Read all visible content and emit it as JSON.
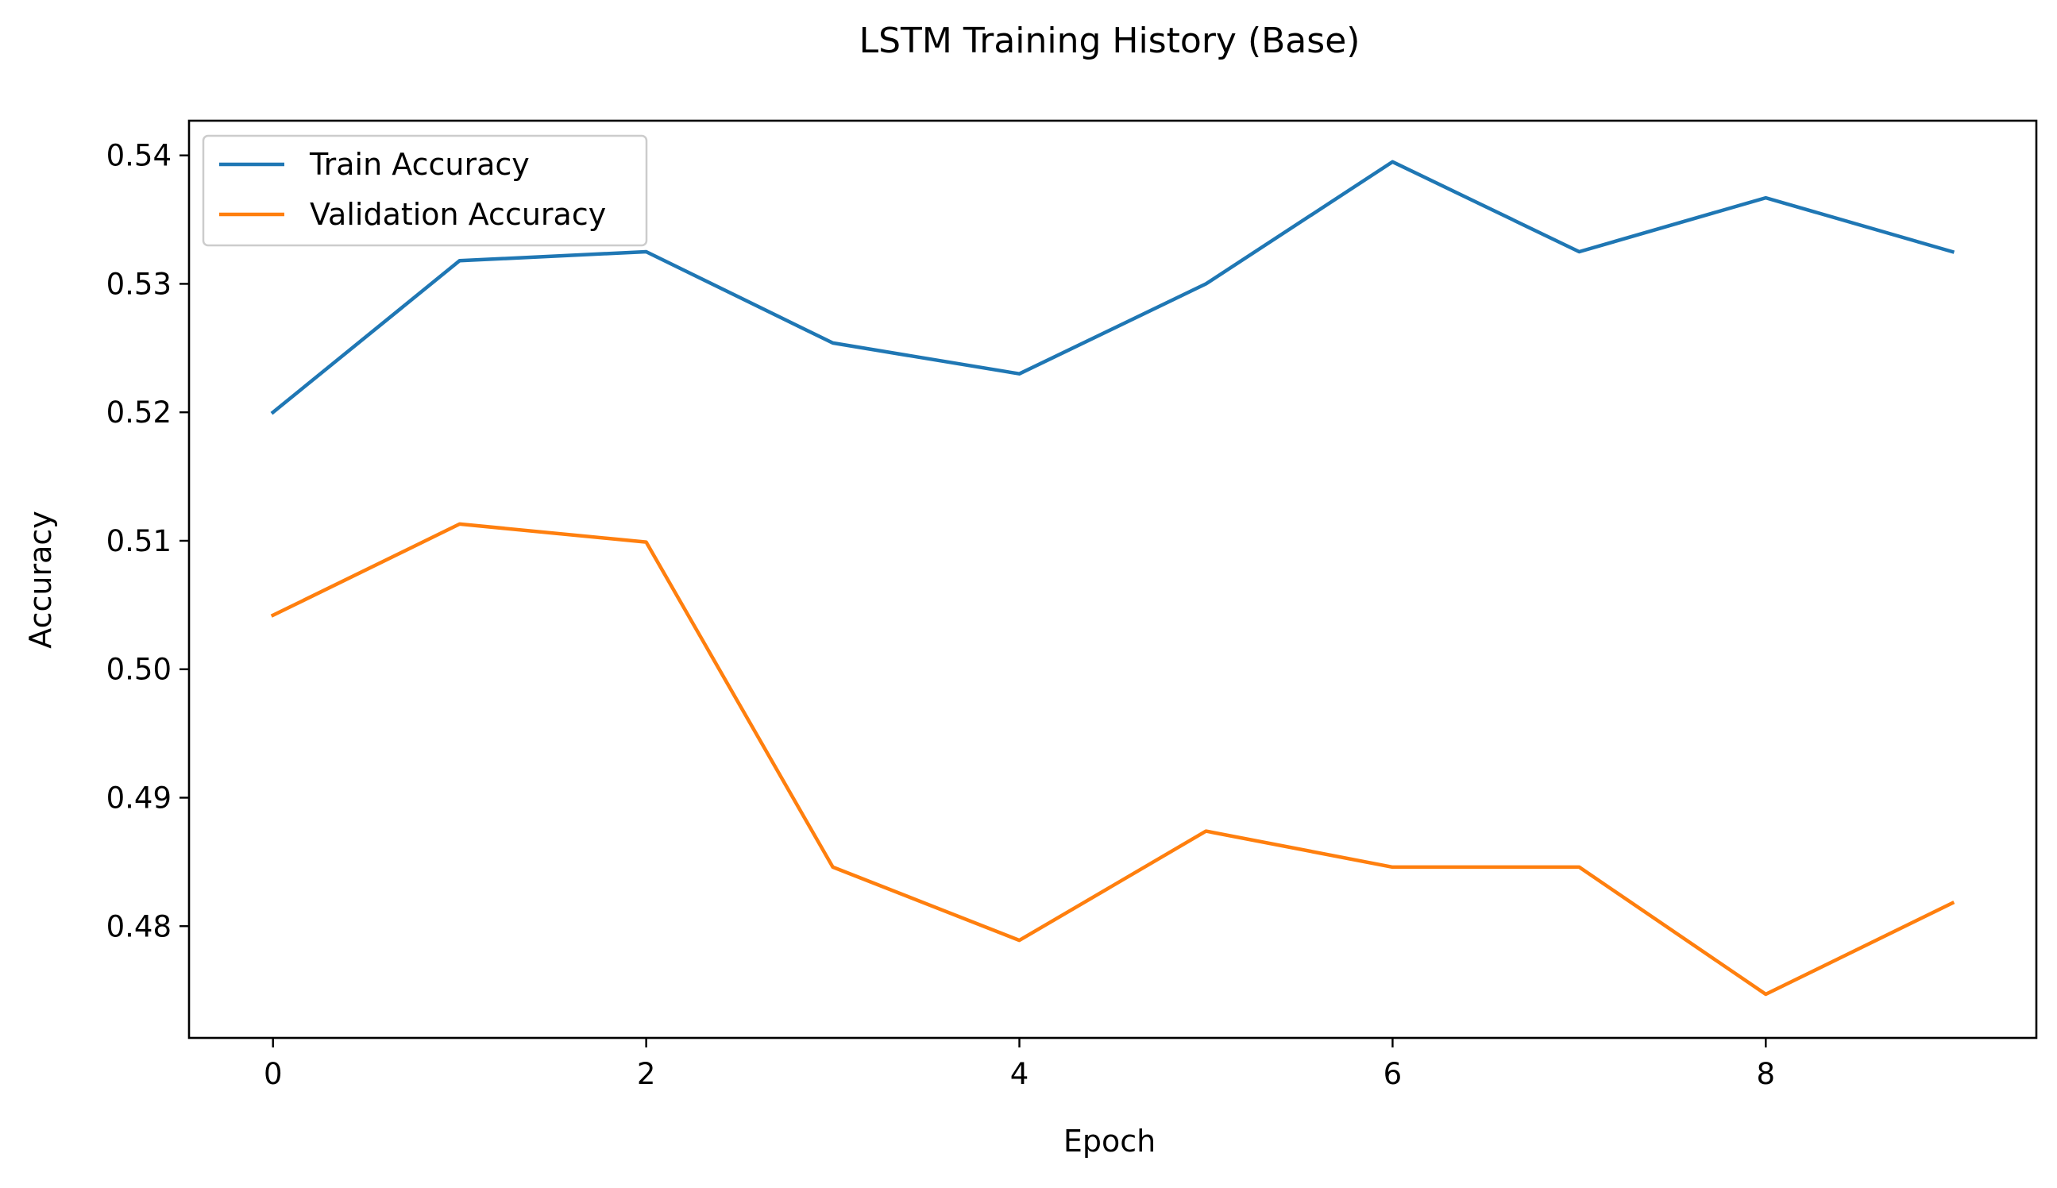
{
  "chart_data": {
    "type": "line",
    "title": "LSTM Training History (Base)",
    "xlabel": "Epoch",
    "ylabel": "Accuracy",
    "x": [
      0,
      1,
      2,
      3,
      4,
      5,
      6,
      7,
      8,
      9
    ],
    "xticks": [
      0,
      2,
      4,
      6,
      8
    ],
    "xtick_labels": [
      "0",
      "2",
      "4",
      "6",
      "8"
    ],
    "yticks": [
      0.48,
      0.49,
      0.5,
      0.51,
      0.52,
      0.53,
      0.54
    ],
    "ytick_labels": [
      "0.48",
      "0.49",
      "0.50",
      "0.51",
      "0.52",
      "0.53",
      "0.54"
    ],
    "xlim": [
      -0.45,
      9.45
    ],
    "ylim": [
      0.4713,
      0.5427
    ],
    "grid": false,
    "legend_position": "top-left",
    "series": [
      {
        "name": "Train Accuracy",
        "color": "#1f77b4",
        "values": [
          0.52,
          0.5318,
          0.5325,
          0.5254,
          0.523,
          0.53,
          0.5395,
          0.5325,
          0.5367,
          0.5325
        ]
      },
      {
        "name": "Validation Accuracy",
        "color": "#ff7f0e",
        "values": [
          0.5042,
          0.5113,
          0.5099,
          0.4846,
          0.4789,
          0.4874,
          0.4846,
          0.4846,
          0.4747,
          0.4818
        ]
      }
    ]
  }
}
